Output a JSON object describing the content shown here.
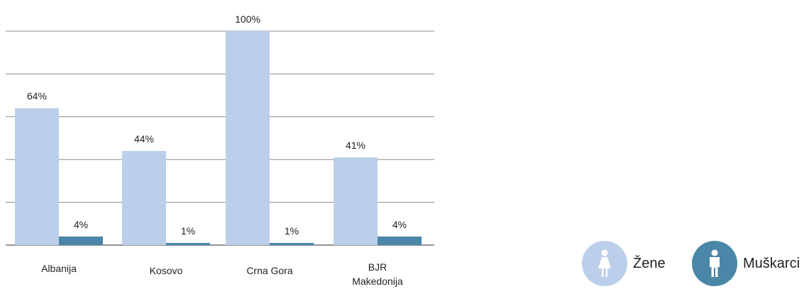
{
  "chart_data": {
    "type": "bar",
    "categories": [
      "Albanija",
      "Kosovo",
      "Crna Gora",
      "BJR Makedonija"
    ],
    "series": [
      {
        "name": "Žene",
        "color": "#bccfea",
        "values": [
          64,
          44,
          100,
          41
        ],
        "labels": [
          "64%",
          "44%",
          "100%",
          "41%"
        ]
      },
      {
        "name": "Muškarci",
        "color": "#4a86a8",
        "values": [
          4,
          1,
          1,
          4
        ],
        "labels": [
          "4%",
          "1%",
          "1%",
          "4%"
        ]
      }
    ],
    "ylim": [
      0,
      100
    ],
    "grid": true,
    "legend_position": "bottom-right"
  },
  "legend": [
    {
      "label": "Žene",
      "icon": "female-icon",
      "color": "#bccfea"
    },
    {
      "label": "Muškarci",
      "icon": "male-icon",
      "color": "#4a86a8"
    }
  ]
}
